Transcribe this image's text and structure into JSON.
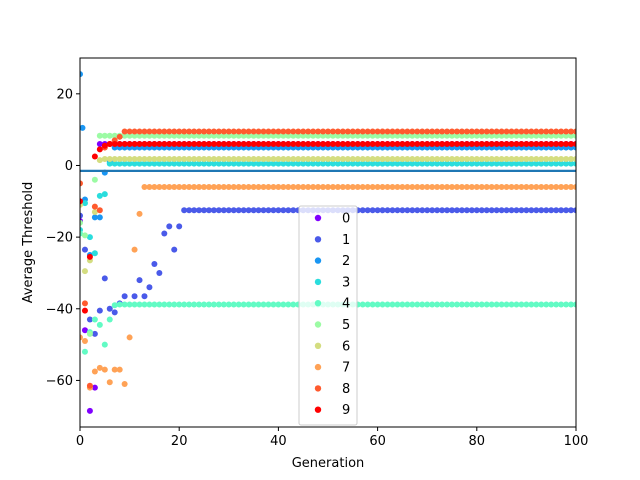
{
  "chart_data": {
    "type": "scatter",
    "xlabel": "Generation",
    "ylabel": "Average Threshold",
    "xlim": [
      0,
      100
    ],
    "ylim": [
      -73,
      30
    ],
    "xticks": [
      0,
      20,
      40,
      60,
      80,
      100
    ],
    "yticks": [
      -60,
      -40,
      -20,
      0,
      20
    ],
    "tick_labels_x": [
      "0",
      "20",
      "40",
      "60",
      "80",
      "100"
    ],
    "tick_labels_y": [
      "−60",
      "−40",
      "−20",
      "0",
      "20"
    ],
    "grid": false,
    "legend_position": "center-bottom",
    "reference_line": {
      "y": -1.5,
      "color": "#1f77b4"
    },
    "series": [
      {
        "name": "0",
        "color": "#8000ff",
        "start": [
          [
            0,
            -15.5
          ],
          [
            1,
            -46
          ],
          [
            2,
            -68.5
          ],
          [
            3,
            -62
          ]
        ],
        "plateau": 6.0
      },
      {
        "name": "1",
        "color": "#4a5ae9",
        "start": [
          [
            0,
            -14
          ],
          [
            1,
            -23.5
          ],
          [
            2,
            -43
          ],
          [
            3,
            -47
          ],
          [
            4,
            -40.5
          ],
          [
            5,
            -31.5
          ],
          [
            6,
            -40
          ],
          [
            7,
            -41
          ],
          [
            8,
            -38.5
          ],
          [
            9,
            -36.5
          ],
          [
            11,
            -36.5
          ],
          [
            12,
            -32
          ],
          [
            13,
            -36.5
          ],
          [
            14,
            -34
          ],
          [
            15,
            -27.5
          ],
          [
            16,
            -30
          ],
          [
            17,
            -19
          ],
          [
            18,
            -17
          ],
          [
            19,
            -23.5
          ],
          [
            20,
            -17
          ]
        ],
        "plateau_start": 21,
        "plateau": -12.5
      },
      {
        "name": "2",
        "color": "#1996f3",
        "start": [
          [
            0,
            25.5
          ],
          [
            0.5,
            10.5
          ],
          [
            1,
            -9.5
          ],
          [
            2,
            -25
          ],
          [
            3,
            -14.5
          ],
          [
            4,
            -14.5
          ],
          [
            5,
            -2
          ],
          [
            6,
            1
          ],
          [
            7,
            5
          ]
        ],
        "plateau": 5.0
      },
      {
        "name": "3",
        "color": "#2adddd",
        "start": [
          [
            0,
            -18
          ],
          [
            1,
            -10.5
          ],
          [
            2,
            -20
          ],
          [
            3,
            -24.5
          ],
          [
            4,
            -8.5
          ],
          [
            5,
            -8
          ],
          [
            6,
            0.5
          ]
        ],
        "plateau": 0.5
      },
      {
        "name": "4",
        "color": "#62fbc4",
        "start": [
          [
            0,
            -19
          ],
          [
            1,
            -52
          ],
          [
            2,
            -46.5
          ],
          [
            3,
            -43
          ],
          [
            4,
            -44.5
          ],
          [
            5,
            -50
          ],
          [
            6,
            -43
          ],
          [
            7,
            -39
          ]
        ],
        "plateau": -38.8
      },
      {
        "name": "5",
        "color": "#9cfba4",
        "start": [
          [
            0,
            -16
          ],
          [
            1,
            -19.5
          ],
          [
            2,
            -47
          ],
          [
            3,
            -4
          ],
          [
            4,
            8.3
          ]
        ],
        "plateau": 8.3
      },
      {
        "name": "6",
        "color": "#d4dd80",
        "start": [
          [
            0,
            -11
          ],
          [
            1,
            -29.5
          ],
          [
            2,
            -26.5
          ],
          [
            3,
            -13
          ],
          [
            4,
            1.5
          ]
        ],
        "plateau": 1.8
      },
      {
        "name": "7",
        "color": "#ffa256",
        "start": [
          [
            0,
            -48
          ],
          [
            1,
            -49
          ],
          [
            2,
            -62
          ],
          [
            3,
            -57.5
          ],
          [
            4,
            -56.5
          ],
          [
            5,
            -57
          ],
          [
            6,
            -60.5
          ],
          [
            7,
            -57
          ],
          [
            8,
            -57
          ],
          [
            9,
            -61
          ],
          [
            10,
            -48
          ],
          [
            11,
            -23.5
          ],
          [
            12,
            -13.5
          ]
        ],
        "plateau_start": 13,
        "plateau": -6.0
      },
      {
        "name": "8",
        "color": "#ff5a2e",
        "start": [
          [
            0,
            -5
          ],
          [
            1,
            -38.5
          ],
          [
            2,
            -61.5
          ],
          [
            3,
            -11.5
          ],
          [
            4,
            -12.5
          ],
          [
            5,
            5
          ],
          [
            6,
            6
          ],
          [
            7,
            7
          ],
          [
            8,
            8
          ],
          [
            9,
            9.5
          ]
        ],
        "plateau": 9.5
      },
      {
        "name": "9",
        "color": "#ff0000",
        "start": [
          [
            0,
            -10
          ],
          [
            1,
            -40.5
          ],
          [
            2,
            -25.5
          ],
          [
            3,
            2.5
          ],
          [
            4,
            4.5
          ],
          [
            5,
            5.5
          ]
        ],
        "plateau": 6.0
      }
    ]
  },
  "legend_title": ""
}
